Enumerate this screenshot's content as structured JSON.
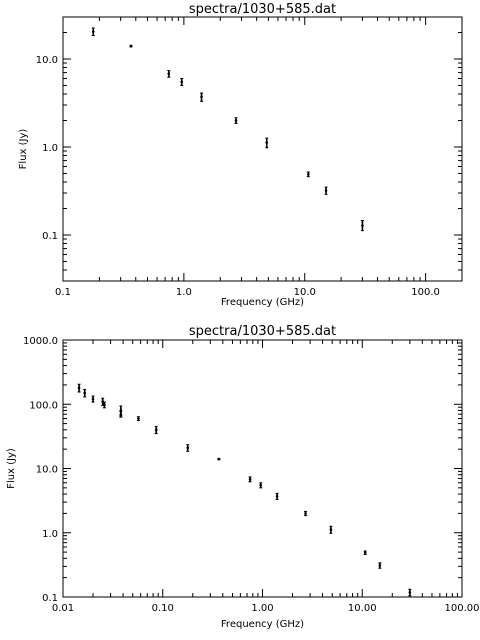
{
  "chart_data": [
    {
      "type": "scatter",
      "title": "spectra/1030+585.dat",
      "xlabel": "Frequency (GHz)",
      "ylabel": "Flux (Jy)",
      "xscale": "log",
      "yscale": "log",
      "xlim": [
        0.1,
        200
      ],
      "ylim": [
        0.03,
        30
      ],
      "xticks": [
        0.1,
        1.0,
        10.0,
        100.0
      ],
      "xticklabels": [
        "0.1",
        "1.0",
        "10.0",
        "100.0"
      ],
      "yticks": [
        0.1,
        1.0,
        10.0
      ],
      "yticklabels": [
        "0.1",
        "1.0",
        "10.0"
      ],
      "points": [
        {
          "x": 0.178,
          "y": 20.5,
          "lo": 18.5,
          "hi": 22.5
        },
        {
          "x": 0.365,
          "y": 14.0,
          "lo": 13.7,
          "hi": 14.3
        },
        {
          "x": 0.75,
          "y": 6.8,
          "lo": 6.2,
          "hi": 7.4
        },
        {
          "x": 0.96,
          "y": 5.5,
          "lo": 5.0,
          "hi": 6.0
        },
        {
          "x": 1.4,
          "y": 3.7,
          "lo": 3.3,
          "hi": 4.1
        },
        {
          "x": 2.7,
          "y": 2.0,
          "lo": 1.85,
          "hi": 2.15
        },
        {
          "x": 4.85,
          "y": 1.12,
          "lo": 0.98,
          "hi": 1.26
        },
        {
          "x": 10.7,
          "y": 0.49,
          "lo": 0.46,
          "hi": 0.52
        },
        {
          "x": 15.0,
          "y": 0.32,
          "lo": 0.29,
          "hi": 0.35
        },
        {
          "x": 30.0,
          "y": 0.128,
          "lo": 0.112,
          "hi": 0.146
        }
      ]
    },
    {
      "type": "scatter",
      "title": "spectra/1030+585.dat",
      "xlabel": "Frequency (GHz)",
      "ylabel": "Flux (Jy)",
      "xscale": "log",
      "yscale": "log",
      "xlim": [
        0.01,
        100
      ],
      "ylim": [
        0.1,
        1000
      ],
      "xticks": [
        0.01,
        0.1,
        1.0,
        10.0,
        100.0
      ],
      "xticklabels": [
        "0.01",
        "0.10",
        "1.00",
        "10.00",
        "100.00"
      ],
      "yticks": [
        0.1,
        1.0,
        10.0,
        100.0,
        1000.0
      ],
      "yticklabels": [
        "0.1",
        "1.0",
        "10.0",
        "100.0",
        "1000.0"
      ],
      "points": [
        {
          "x": 0.0145,
          "y": 180,
          "lo": 155,
          "hi": 205
        },
        {
          "x": 0.0165,
          "y": 150,
          "lo": 130,
          "hi": 170
        },
        {
          "x": 0.02,
          "y": 120,
          "lo": 108,
          "hi": 134
        },
        {
          "x": 0.025,
          "y": 110,
          "lo": 96,
          "hi": 124
        },
        {
          "x": 0.026,
          "y": 98,
          "lo": 88,
          "hi": 108
        },
        {
          "x": 0.038,
          "y": 80,
          "lo": 66,
          "hi": 94
        },
        {
          "x": 0.038,
          "y": 70,
          "lo": 63,
          "hi": 77
        },
        {
          "x": 0.057,
          "y": 60,
          "lo": 56,
          "hi": 64
        },
        {
          "x": 0.086,
          "y": 40,
          "lo": 35,
          "hi": 45
        },
        {
          "x": 0.178,
          "y": 21,
          "lo": 18.5,
          "hi": 23.5
        },
        {
          "x": 0.365,
          "y": 14.0,
          "lo": 13.7,
          "hi": 14.3
        },
        {
          "x": 0.75,
          "y": 6.8,
          "lo": 6.2,
          "hi": 7.4
        },
        {
          "x": 0.96,
          "y": 5.5,
          "lo": 5.0,
          "hi": 6.0
        },
        {
          "x": 1.4,
          "y": 3.7,
          "lo": 3.3,
          "hi": 4.1
        },
        {
          "x": 2.7,
          "y": 2.0,
          "lo": 1.85,
          "hi": 2.15
        },
        {
          "x": 4.85,
          "y": 1.12,
          "lo": 0.98,
          "hi": 1.26
        },
        {
          "x": 10.7,
          "y": 0.49,
          "lo": 0.46,
          "hi": 0.52
        },
        {
          "x": 15.0,
          "y": 0.31,
          "lo": 0.28,
          "hi": 0.34
        },
        {
          "x": 30.0,
          "y": 0.118,
          "lo": 0.105,
          "hi": 0.132
        }
      ]
    }
  ]
}
